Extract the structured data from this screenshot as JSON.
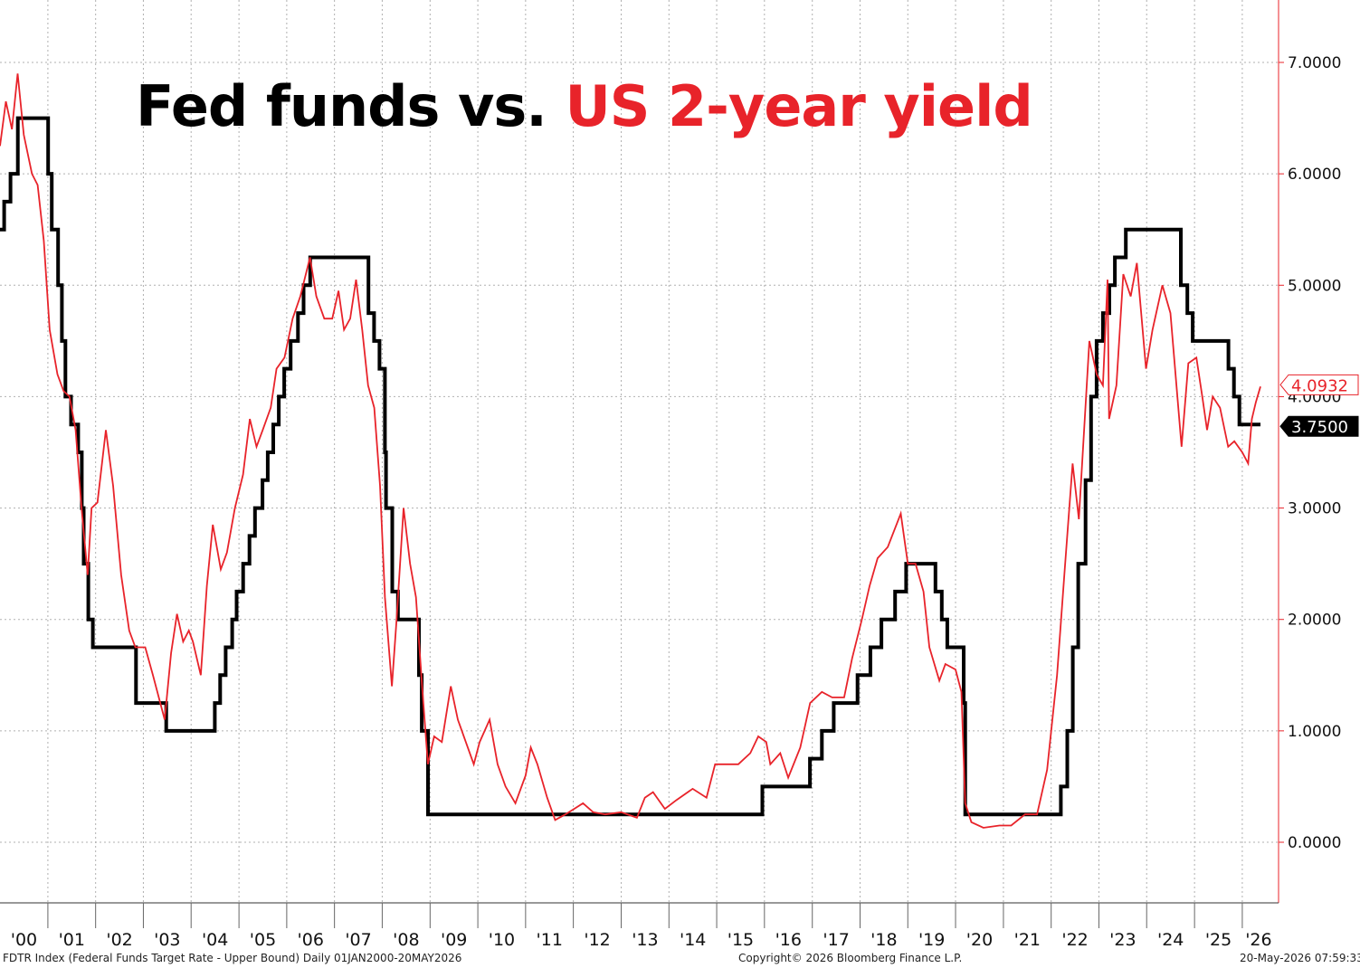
{
  "title": {
    "part1": "Fed funds vs.",
    "part2": "US 2-year yield"
  },
  "footer": {
    "left": "FDTR Index (Federal Funds Target Rate - Upper Bound) Daily 01JAN2000-20MAY2026",
    "center": "Copyright© 2026 Bloomberg Finance L.P.",
    "right": "20-May-2026 07:59:33"
  },
  "colors": {
    "fed": "#000000",
    "yield": "#e8232a",
    "grid": "#b0b0b0",
    "axis": "#e8232a"
  },
  "chart_data": {
    "type": "line",
    "title": "Fed funds vs. US 2-year yield",
    "xlabel": "",
    "ylabel": "",
    "ylim": [
      -0.55,
      7.55
    ],
    "xlim": [
      "2000-01-01",
      "2026-05-20"
    ],
    "grid": true,
    "y_axis_position": "right",
    "y_ticks": [
      "0.0000",
      "1.0000",
      "2.0000",
      "3.0000",
      "4.0000",
      "5.0000",
      "6.0000",
      "7.0000"
    ],
    "x_ticks": [
      "'00",
      "'01",
      "'02",
      "'03",
      "'04",
      "'05",
      "'06",
      "'07",
      "'08",
      "'09",
      "'10",
      "'11",
      "'12",
      "'13",
      "'14",
      "'15",
      "'16",
      "'17",
      "'18",
      "'19",
      "'20",
      "'21",
      "'22",
      "'23",
      "'24",
      "'25",
      "'26"
    ],
    "last_values": [
      {
        "series": "US 2-year yield",
        "label": "4.0932"
      },
      {
        "series": "Fed funds",
        "label": "3.7500"
      }
    ],
    "series": [
      {
        "name": "Fed funds",
        "step": true,
        "points": [
          [
            "2000-01-01",
            5.5
          ],
          [
            "2000-02-02",
            5.75
          ],
          [
            "2000-03-21",
            6.0
          ],
          [
            "2000-05-16",
            6.5
          ],
          [
            "2001-01-03",
            6.0
          ],
          [
            "2001-01-31",
            5.5
          ],
          [
            "2001-03-20",
            5.0
          ],
          [
            "2001-04-18",
            4.5
          ],
          [
            "2001-05-15",
            4.0
          ],
          [
            "2001-06-27",
            3.75
          ],
          [
            "2001-08-21",
            3.5
          ],
          [
            "2001-09-17",
            3.0
          ],
          [
            "2001-10-02",
            2.5
          ],
          [
            "2001-11-06",
            2.0
          ],
          [
            "2001-12-11",
            1.75
          ],
          [
            "2002-11-06",
            1.25
          ],
          [
            "2003-06-25",
            1.0
          ],
          [
            "2004-06-30",
            1.25
          ],
          [
            "2004-08-10",
            1.5
          ],
          [
            "2004-09-21",
            1.75
          ],
          [
            "2004-11-10",
            2.0
          ],
          [
            "2004-12-14",
            2.25
          ],
          [
            "2005-02-02",
            2.5
          ],
          [
            "2005-03-22",
            2.75
          ],
          [
            "2005-05-03",
            3.0
          ],
          [
            "2005-06-30",
            3.25
          ],
          [
            "2005-08-09",
            3.5
          ],
          [
            "2005-09-20",
            3.75
          ],
          [
            "2005-11-01",
            4.0
          ],
          [
            "2005-12-13",
            4.25
          ],
          [
            "2006-01-31",
            4.5
          ],
          [
            "2006-03-28",
            4.75
          ],
          [
            "2006-05-10",
            5.0
          ],
          [
            "2006-06-29",
            5.25
          ],
          [
            "2007-09-18",
            4.75
          ],
          [
            "2007-10-31",
            4.5
          ],
          [
            "2007-12-11",
            4.25
          ],
          [
            "2008-01-22",
            3.5
          ],
          [
            "2008-01-30",
            3.0
          ],
          [
            "2008-03-18",
            2.25
          ],
          [
            "2008-04-30",
            2.0
          ],
          [
            "2008-10-08",
            1.5
          ],
          [
            "2008-10-29",
            1.0
          ],
          [
            "2008-12-16",
            0.25
          ],
          [
            "2015-12-16",
            0.5
          ],
          [
            "2016-12-14",
            0.75
          ],
          [
            "2017-03-15",
            1.0
          ],
          [
            "2017-06-14",
            1.25
          ],
          [
            "2017-12-13",
            1.5
          ],
          [
            "2018-03-21",
            1.75
          ],
          [
            "2018-06-13",
            2.0
          ],
          [
            "2018-09-26",
            2.25
          ],
          [
            "2018-12-19",
            2.5
          ],
          [
            "2019-07-31",
            2.25
          ],
          [
            "2019-09-18",
            2.0
          ],
          [
            "2019-10-30",
            1.75
          ],
          [
            "2020-03-03",
            1.25
          ],
          [
            "2020-03-15",
            0.25
          ],
          [
            "2022-03-16",
            0.5
          ],
          [
            "2022-05-04",
            1.0
          ],
          [
            "2022-06-15",
            1.75
          ],
          [
            "2022-07-27",
            2.5
          ],
          [
            "2022-09-21",
            3.25
          ],
          [
            "2022-11-02",
            4.0
          ],
          [
            "2022-12-14",
            4.5
          ],
          [
            "2023-02-01",
            4.75
          ],
          [
            "2023-03-22",
            5.0
          ],
          [
            "2023-05-03",
            5.25
          ],
          [
            "2023-07-26",
            5.5
          ],
          [
            "2024-09-18",
            5.0
          ],
          [
            "2024-11-07",
            4.75
          ],
          [
            "2024-12-18",
            4.5
          ],
          [
            "2025-09-17",
            4.25
          ],
          [
            "2025-10-29",
            4.0
          ],
          [
            "2025-12-10",
            3.75
          ],
          [
            "2026-05-20",
            3.75
          ]
        ]
      },
      {
        "name": "US 2-year yield",
        "step": false,
        "points": [
          [
            "2000-01-01",
            6.25
          ],
          [
            "2000-02-15",
            6.65
          ],
          [
            "2000-04-01",
            6.4
          ],
          [
            "2000-05-15",
            6.9
          ],
          [
            "2000-07-01",
            6.35
          ],
          [
            "2000-09-01",
            6.0
          ],
          [
            "2000-10-15",
            5.9
          ],
          [
            "2000-12-01",
            5.4
          ],
          [
            "2001-01-15",
            4.6
          ],
          [
            "2001-03-15",
            4.2
          ],
          [
            "2001-05-01",
            4.05
          ],
          [
            "2001-06-15",
            4.0
          ],
          [
            "2001-08-01",
            3.7
          ],
          [
            "2001-09-15",
            3.0
          ],
          [
            "2001-11-01",
            2.4
          ],
          [
            "2001-12-01",
            3.0
          ],
          [
            "2002-01-15",
            3.05
          ],
          [
            "2002-03-20",
            3.7
          ],
          [
            "2002-05-15",
            3.2
          ],
          [
            "2002-07-15",
            2.4
          ],
          [
            "2002-09-15",
            1.9
          ],
          [
            "2002-11-01",
            1.75
          ],
          [
            "2003-01-15",
            1.75
          ],
          [
            "2003-03-15",
            1.5
          ],
          [
            "2003-06-13",
            1.1
          ],
          [
            "2003-08-01",
            1.7
          ],
          [
            "2003-09-15",
            2.05
          ],
          [
            "2003-11-01",
            1.8
          ],
          [
            "2003-12-15",
            1.9
          ],
          [
            "2004-01-15",
            1.8
          ],
          [
            "2004-03-15",
            1.5
          ],
          [
            "2004-04-30",
            2.3
          ],
          [
            "2004-06-15",
            2.85
          ],
          [
            "2004-08-15",
            2.45
          ],
          [
            "2004-10-01",
            2.6
          ],
          [
            "2004-12-01",
            3.0
          ],
          [
            "2005-02-01",
            3.3
          ],
          [
            "2005-03-25",
            3.8
          ],
          [
            "2005-05-15",
            3.55
          ],
          [
            "2005-07-01",
            3.7
          ],
          [
            "2005-09-01",
            3.9
          ],
          [
            "2005-10-15",
            4.25
          ],
          [
            "2005-12-15",
            4.35
          ],
          [
            "2006-02-15",
            4.7
          ],
          [
            "2006-04-15",
            4.9
          ],
          [
            "2006-06-28",
            5.25
          ],
          [
            "2006-08-15",
            4.9
          ],
          [
            "2006-10-15",
            4.7
          ],
          [
            "2006-12-15",
            4.7
          ],
          [
            "2007-02-01",
            4.95
          ],
          [
            "2007-03-15",
            4.6
          ],
          [
            "2007-05-01",
            4.7
          ],
          [
            "2007-06-15",
            5.05
          ],
          [
            "2007-08-01",
            4.6
          ],
          [
            "2007-09-15",
            4.1
          ],
          [
            "2007-11-01",
            3.9
          ],
          [
            "2007-12-15",
            3.2
          ],
          [
            "2008-01-22",
            2.2
          ],
          [
            "2008-03-15",
            1.4
          ],
          [
            "2008-04-20",
            2.0
          ],
          [
            "2008-06-12",
            3.0
          ],
          [
            "2008-08-01",
            2.5
          ],
          [
            "2008-09-15",
            2.2
          ],
          [
            "2008-11-01",
            1.4
          ],
          [
            "2008-12-15",
            0.7
          ],
          [
            "2009-02-01",
            0.95
          ],
          [
            "2009-04-01",
            0.9
          ],
          [
            "2009-06-08",
            1.4
          ],
          [
            "2009-08-01",
            1.1
          ],
          [
            "2009-10-01",
            0.9
          ],
          [
            "2009-12-01",
            0.7
          ],
          [
            "2010-01-15",
            0.9
          ],
          [
            "2010-04-01",
            1.1
          ],
          [
            "2010-06-01",
            0.7
          ],
          [
            "2010-08-01",
            0.5
          ],
          [
            "2010-10-15",
            0.35
          ],
          [
            "2011-01-01",
            0.6
          ],
          [
            "2011-02-10",
            0.85
          ],
          [
            "2011-04-01",
            0.7
          ],
          [
            "2011-06-15",
            0.4
          ],
          [
            "2011-08-15",
            0.2
          ],
          [
            "2011-11-01",
            0.25
          ],
          [
            "2012-03-15",
            0.35
          ],
          [
            "2012-06-01",
            0.27
          ],
          [
            "2012-09-01",
            0.25
          ],
          [
            "2013-01-01",
            0.27
          ],
          [
            "2013-05-01",
            0.22
          ],
          [
            "2013-07-01",
            0.4
          ],
          [
            "2013-09-01",
            0.45
          ],
          [
            "2013-12-01",
            0.3
          ],
          [
            "2014-03-01",
            0.38
          ],
          [
            "2014-07-01",
            0.48
          ],
          [
            "2014-10-15",
            0.4
          ],
          [
            "2014-12-20",
            0.7
          ],
          [
            "2015-03-01",
            0.7
          ],
          [
            "2015-06-15",
            0.7
          ],
          [
            "2015-09-15",
            0.8
          ],
          [
            "2015-11-15",
            0.95
          ],
          [
            "2016-01-15",
            0.9
          ],
          [
            "2016-02-15",
            0.7
          ],
          [
            "2016-05-01",
            0.8
          ],
          [
            "2016-07-01",
            0.58
          ],
          [
            "2016-10-01",
            0.85
          ],
          [
            "2016-12-15",
            1.25
          ],
          [
            "2017-03-15",
            1.35
          ],
          [
            "2017-06-01",
            1.3
          ],
          [
            "2017-09-01",
            1.3
          ],
          [
            "2017-11-01",
            1.65
          ],
          [
            "2018-01-15",
            2.0
          ],
          [
            "2018-03-15",
            2.3
          ],
          [
            "2018-05-15",
            2.55
          ],
          [
            "2018-08-01",
            2.65
          ],
          [
            "2018-11-08",
            2.95
          ],
          [
            "2019-01-01",
            2.5
          ],
          [
            "2019-03-01",
            2.5
          ],
          [
            "2019-05-01",
            2.25
          ],
          [
            "2019-06-15",
            1.75
          ],
          [
            "2019-08-30",
            1.45
          ],
          [
            "2019-10-15",
            1.6
          ],
          [
            "2020-01-01",
            1.55
          ],
          [
            "2020-02-15",
            1.35
          ],
          [
            "2020-03-15",
            0.35
          ],
          [
            "2020-05-01",
            0.18
          ],
          [
            "2020-08-01",
            0.13
          ],
          [
            "2020-12-01",
            0.15
          ],
          [
            "2021-03-01",
            0.15
          ],
          [
            "2021-06-15",
            0.25
          ],
          [
            "2021-09-15",
            0.25
          ],
          [
            "2021-12-01",
            0.65
          ],
          [
            "2022-02-15",
            1.5
          ],
          [
            "2022-04-15",
            2.45
          ],
          [
            "2022-06-14",
            3.4
          ],
          [
            "2022-08-01",
            2.9
          ],
          [
            "2022-10-20",
            4.5
          ],
          [
            "2022-12-15",
            4.2
          ],
          [
            "2023-02-01",
            4.1
          ],
          [
            "2023-03-08",
            5.05
          ],
          [
            "2023-03-20",
            3.8
          ],
          [
            "2023-05-15",
            4.1
          ],
          [
            "2023-07-06",
            5.1
          ],
          [
            "2023-09-01",
            4.9
          ],
          [
            "2023-10-18",
            5.2
          ],
          [
            "2023-12-27",
            4.25
          ],
          [
            "2024-02-15",
            4.6
          ],
          [
            "2024-04-30",
            5.0
          ],
          [
            "2024-07-01",
            4.75
          ],
          [
            "2024-09-24",
            3.55
          ],
          [
            "2024-11-15",
            4.3
          ],
          [
            "2025-01-15",
            4.35
          ],
          [
            "2025-03-01",
            4.0
          ],
          [
            "2025-04-07",
            3.7
          ],
          [
            "2025-05-20",
            4.0
          ],
          [
            "2025-07-15",
            3.9
          ],
          [
            "2025-09-15",
            3.55
          ],
          [
            "2025-11-01",
            3.6
          ],
          [
            "2026-01-01",
            3.5
          ],
          [
            "2026-02-15",
            3.4
          ],
          [
            "2026-03-15",
            3.8
          ],
          [
            "2026-04-15",
            3.95
          ],
          [
            "2026-05-20",
            4.09
          ]
        ]
      }
    ]
  }
}
